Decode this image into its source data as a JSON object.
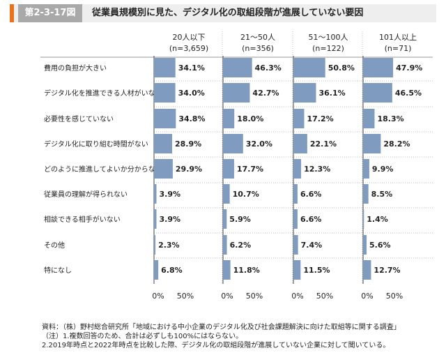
{
  "figure": {
    "id": "第2-3-17図",
    "title": "従業員規模別に見た、デジタル化の取組段階が進展していない要因"
  },
  "chart_data": {
    "type": "bar",
    "orientation": "horizontal",
    "panels": [
      {
        "name": "20人以下",
        "n": "(n=3,659)",
        "values": [
          34.1,
          34.0,
          34.8,
          28.9,
          29.9,
          3.9,
          3.9,
          2.3,
          6.8
        ]
      },
      {
        "name": "21～50人",
        "n": "(n=356)",
        "values": [
          46.3,
          42.7,
          18.0,
          32.0,
          17.7,
          10.7,
          5.9,
          6.2,
          11.8
        ]
      },
      {
        "name": "51～100人",
        "n": "(n=122)",
        "values": [
          50.8,
          36.1,
          17.2,
          22.1,
          12.3,
          6.6,
          6.6,
          7.4,
          11.5
        ]
      },
      {
        "name": "101人以上",
        "n": "(n=71)",
        "values": [
          47.9,
          46.5,
          18.3,
          28.2,
          9.9,
          8.5,
          1.4,
          5.6,
          12.7
        ]
      }
    ],
    "categories": [
      "費用の負担が大きい",
      "デジタル化を推進できる人材がいない",
      "必要性を感じていない",
      "デジタル化に取り組む時間がない",
      "どのように推進してよいか分からない",
      "従業員の理解が得られない",
      "相談できる相手がいない",
      "その他",
      "特になし"
    ],
    "x_ticks": [
      "0%",
      "50%"
    ],
    "xlim": [
      0,
      100
    ],
    "bar_color": "#7f9cc0",
    "value_suffix": "%"
  },
  "notes": [
    "資料：（株）野村総合研究所「地域における中小企業のデジタル化及び社会課題解決に向けた取組等に関する調査」",
    "（注）1.複数回答のため、合計は必ずしも100%にはならない。",
    "2.2019年時点と2022年時点を比較した際、デジタル化の取組段階が進展していない企業に対して聞いている。"
  ]
}
